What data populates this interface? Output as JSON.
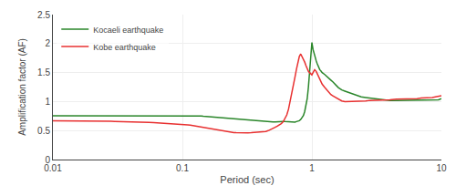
{
  "chart_data": {
    "type": "line",
    "xlabel": "Period (sec)",
    "ylabel": "Amplification factor (AF)",
    "log": "x",
    "xlim": [
      0.01,
      10
    ],
    "xticks": [
      0.01,
      0.1,
      1,
      10
    ],
    "ylim": [
      0.0,
      2.5
    ],
    "yticks": [
      0.0,
      0.5,
      1.0,
      1.5,
      2.0,
      2.5
    ],
    "grid": true,
    "legend": "upper left",
    "x": [
      0.01,
      0.011,
      0.012,
      0.013,
      0.014,
      0.015,
      0.016,
      0.017,
      0.018,
      0.019,
      0.02,
      0.022,
      0.024,
      0.026,
      0.028,
      0.03,
      0.032,
      0.035,
      0.038,
      0.04,
      0.042,
      0.045,
      0.048,
      0.05,
      0.055,
      0.06,
      0.065,
      0.07,
      0.075,
      0.08,
      0.085,
      0.09,
      0.095,
      0.1,
      0.105,
      0.11,
      0.115,
      0.12,
      0.125,
      0.13,
      0.135,
      0.14,
      0.145,
      0.15,
      0.16,
      0.17,
      0.18,
      0.19,
      0.2,
      0.21,
      0.22,
      0.23,
      0.24,
      0.25,
      0.26,
      0.27,
      0.28,
      0.29,
      0.3,
      0.32,
      0.34,
      0.36,
      0.38,
      0.4,
      0.42,
      0.44,
      0.46,
      0.48,
      0.5,
      0.52,
      0.54,
      0.56,
      0.58,
      0.6,
      0.62,
      0.64,
      0.66,
      0.68,
      0.7,
      0.72,
      0.74,
      0.76,
      0.78,
      0.8,
      0.82,
      0.84,
      0.86,
      0.88,
      0.9,
      0.92,
      0.94,
      0.96,
      0.98,
      1.0,
      1.02,
      1.05,
      1.08,
      1.1,
      1.12,
      1.15,
      1.18,
      1.2,
      1.25,
      1.3,
      1.35,
      1.4,
      1.45,
      1.5,
      1.55,
      1.6,
      1.65,
      1.7,
      1.8,
      1.9,
      2.0,
      2.1,
      2.2,
      2.4,
      2.6,
      2.8,
      3.0,
      3.2,
      3.5,
      4.0,
      4.5,
      5.0,
      5.5,
      6.0,
      6.5,
      7.0,
      7.5,
      8.0,
      8.5,
      9.0,
      9.5,
      10.0
    ],
    "series": [
      {
        "name": "Kocaeli earthquake",
        "color": "#2a862a",
        "values": [
          0.755,
          0.755,
          0.755,
          0.757,
          0.758,
          0.758,
          0.758,
          0.758,
          0.758,
          0.758,
          0.758,
          0.759,
          0.76,
          0.76,
          0.76,
          0.76,
          0.761,
          0.762,
          0.762,
          0.762,
          0.762,
          0.762,
          0.763,
          0.763,
          0.763,
          0.763,
          0.763,
          0.763,
          0.763,
          0.762,
          0.762,
          0.762,
          0.762,
          0.762,
          0.762,
          0.762,
          0.761,
          0.761,
          0.76,
          0.758,
          0.755,
          0.752,
          0.748,
          0.745,
          0.74,
          0.735,
          0.73,
          0.725,
          0.72,
          0.715,
          0.712,
          0.712,
          0.712,
          0.71,
          0.705,
          0.7,
          0.695,
          0.69,
          0.685,
          0.678,
          0.672,
          0.668,
          0.663,
          0.66,
          0.658,
          0.655,
          0.652,
          0.65,
          0.648,
          0.65,
          0.655,
          0.66,
          0.66,
          0.658,
          0.655,
          0.652,
          0.648,
          0.645,
          0.64,
          0.64,
          0.645,
          0.655,
          0.66,
          0.67,
          0.69,
          0.72,
          0.76,
          0.83,
          0.92,
          1.05,
          1.25,
          1.55,
          1.82,
          2.02,
          1.9,
          1.78,
          1.7,
          1.65,
          1.6,
          1.55,
          1.52,
          1.5,
          1.47,
          1.43,
          1.4,
          1.37,
          1.34,
          1.3,
          1.27,
          1.24,
          1.22,
          1.2,
          1.18,
          1.16,
          1.14,
          1.12,
          1.1,
          1.08,
          1.07,
          1.06,
          1.05,
          1.04,
          1.03,
          1.02,
          1.02,
          1.02,
          1.02,
          1.02,
          1.02,
          1.02,
          1.02,
          1.02,
          1.02,
          1.02,
          1.03,
          1.05
        ]
      },
      {
        "name": "Kobe earthquake",
        "color": "#e83030",
        "values": [
          0.67,
          0.67,
          0.67,
          0.669,
          0.668,
          0.668,
          0.667,
          0.667,
          0.666,
          0.665,
          0.664,
          0.663,
          0.662,
          0.661,
          0.66,
          0.658,
          0.657,
          0.655,
          0.654,
          0.652,
          0.65,
          0.648,
          0.646,
          0.644,
          0.64,
          0.636,
          0.632,
          0.628,
          0.624,
          0.62,
          0.616,
          0.612,
          0.608,
          0.604,
          0.6,
          0.596,
          0.592,
          0.585,
          0.578,
          0.572,
          0.566,
          0.56,
          0.552,
          0.545,
          0.53,
          0.518,
          0.508,
          0.5,
          0.492,
          0.485,
          0.478,
          0.472,
          0.468,
          0.465,
          0.462,
          0.46,
          0.458,
          0.458,
          0.458,
          0.46,
          0.462,
          0.465,
          0.468,
          0.472,
          0.478,
          0.485,
          0.498,
          0.515,
          0.535,
          0.555,
          0.575,
          0.595,
          0.62,
          0.65,
          0.7,
          0.77,
          0.87,
          1.0,
          1.14,
          1.28,
          1.42,
          1.56,
          1.68,
          1.78,
          1.82,
          1.78,
          1.74,
          1.68,
          1.62,
          1.55,
          1.52,
          1.5,
          1.48,
          1.46,
          1.5,
          1.55,
          1.52,
          1.48,
          1.45,
          1.4,
          1.35,
          1.3,
          1.25,
          1.2,
          1.16,
          1.12,
          1.1,
          1.08,
          1.06,
          1.04,
          1.02,
          1.01,
          1.0,
          1.0,
          1.0,
          1.0,
          1.0,
          1.0,
          1.01,
          1.02,
          1.02,
          1.03,
          1.03,
          1.03,
          1.04,
          1.04,
          1.05,
          1.05,
          1.05,
          1.06,
          1.06,
          1.07,
          1.07,
          1.08,
          1.09,
          1.1
        ]
      }
    ]
  }
}
